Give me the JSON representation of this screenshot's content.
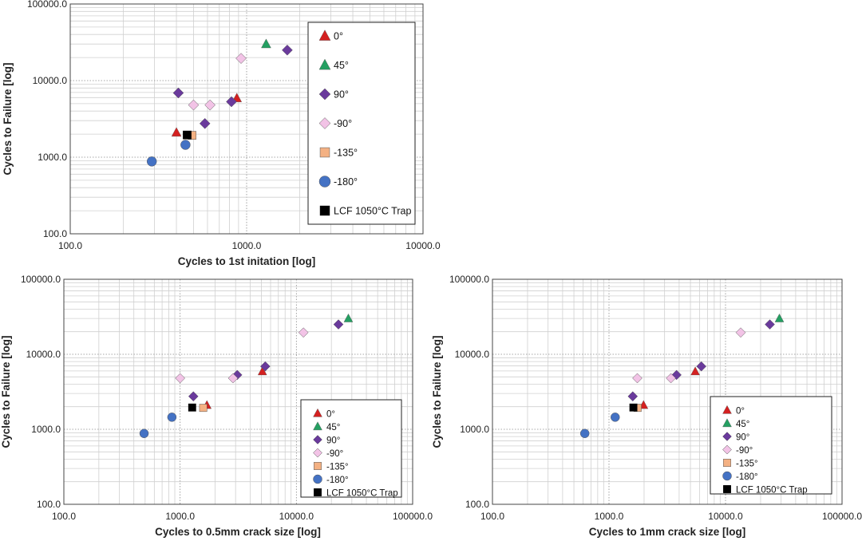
{
  "colors": {
    "0°": "#d42020",
    "45°": "#24a062",
    "90°": "#6a3a9c",
    "-90°": "#f2c3e6",
    "-135°": "#f4b183",
    "-180°": "#4472c4",
    "LCF 1050°C Trap": "#000000"
  },
  "markers": {
    "0°": "triangle",
    "45°": "triangle",
    "90°": "diamond",
    "-90°": "diamond",
    "-135°": "square",
    "-180°": "circle",
    "LCF 1050°C Trap": "square"
  },
  "chart_data": [
    {
      "type": "scatter",
      "title": "",
      "xlabel": "Cycles to 1st initation [log]",
      "ylabel": "Cycles to Failure [log]",
      "xscale": "log",
      "yscale": "log",
      "xlim": [
        100,
        10000
      ],
      "ylim": [
        100,
        100000
      ],
      "xticks": [
        "100.0",
        "1000.0",
        "10000.0"
      ],
      "yticks": [
        "100.0",
        "1000.0",
        "10000.0",
        "100000.0"
      ],
      "grid": true,
      "legend": "top-right",
      "series": [
        {
          "name": "0°",
          "points": [
            [
              400,
              2100
            ],
            [
              880,
              5900
            ]
          ]
        },
        {
          "name": "45°",
          "points": [
            [
              1290,
              30000
            ]
          ]
        },
        {
          "name": "90°",
          "points": [
            [
              410,
              6900
            ],
            [
              580,
              2750
            ],
            [
              820,
              5300
            ],
            [
              1700,
              25000
            ]
          ]
        },
        {
          "name": "-90°",
          "points": [
            [
              500,
              4800
            ],
            [
              620,
              4800
            ],
            [
              930,
              19500
            ]
          ]
        },
        {
          "name": "-135°",
          "points": [
            [
              490,
              1930
            ]
          ]
        },
        {
          "name": "-180°",
          "points": [
            [
              290,
              880
            ],
            [
              450,
              1450
            ]
          ]
        },
        {
          "name": "LCF 1050°C Trap",
          "points": [
            [
              460,
              1950
            ]
          ]
        }
      ]
    },
    {
      "type": "scatter",
      "title": "",
      "xlabel": "Cycles to 0.5mm crack size [log]",
      "ylabel": "Cycles to Failure [log]",
      "xscale": "log",
      "yscale": "log",
      "xlim": [
        100,
        100000
      ],
      "ylim": [
        100,
        100000
      ],
      "xticks": [
        "100.0",
        "1000.0",
        "10000.0",
        "100000.0"
      ],
      "yticks": [
        "100.0",
        "1000.0",
        "10000.0",
        "100000.0"
      ],
      "grid": true,
      "legend": "bottom-right",
      "series": [
        {
          "name": "0°",
          "points": [
            [
              1700,
              2100
            ],
            [
              5100,
              5900
            ]
          ]
        },
        {
          "name": "45°",
          "points": [
            [
              28000,
              30000
            ]
          ]
        },
        {
          "name": "90°",
          "points": [
            [
              1300,
              2750
            ],
            [
              3100,
              5300
            ],
            [
              5400,
              6900
            ],
            [
              23000,
              25000
            ]
          ]
        },
        {
          "name": "-90°",
          "points": [
            [
              1000,
              4800
            ],
            [
              2850,
              4800
            ],
            [
              11500,
              19500
            ]
          ]
        },
        {
          "name": "-135°",
          "points": [
            [
              1580,
              1930
            ]
          ]
        },
        {
          "name": "-180°",
          "points": [
            [
              490,
              880
            ],
            [
              850,
              1450
            ]
          ]
        },
        {
          "name": "LCF 1050°C Trap",
          "points": [
            [
              1270,
              1950
            ]
          ]
        }
      ]
    },
    {
      "type": "scatter",
      "title": "",
      "xlabel": "Cycles to 1mm crack size [log]",
      "ylabel": "Cycles to Failure [log]",
      "xscale": "log",
      "yscale": "log",
      "xlim": [
        100,
        100000
      ],
      "ylim": [
        100,
        100000
      ],
      "xticks": [
        "100.0",
        "1000.0",
        "10000.0",
        "100000.0"
      ],
      "yticks": [
        "100.0",
        "1000.0",
        "10000.0",
        "100000.0"
      ],
      "grid": true,
      "legend": "bottom-right",
      "series": [
        {
          "name": "0°",
          "points": [
            [
              1980,
              2100
            ],
            [
              5500,
              5900
            ]
          ]
        },
        {
          "name": "45°",
          "points": [
            [
              29000,
              30000
            ]
          ]
        },
        {
          "name": "90°",
          "points": [
            [
              1600,
              2750
            ],
            [
              3800,
              5300
            ],
            [
              6200,
              6900
            ],
            [
              24000,
              25000
            ]
          ]
        },
        {
          "name": "-90°",
          "points": [
            [
              1750,
              4800
            ],
            [
              3400,
              4800
            ],
            [
              13500,
              19500
            ]
          ]
        },
        {
          "name": "-135°",
          "points": [
            [
              1760,
              1930
            ]
          ]
        },
        {
          "name": "-180°",
          "points": [
            [
              620,
              880
            ],
            [
              1130,
              1450
            ]
          ]
        },
        {
          "name": "LCF 1050°C Trap",
          "points": [
            [
              1620,
              1950
            ]
          ]
        }
      ]
    }
  ]
}
